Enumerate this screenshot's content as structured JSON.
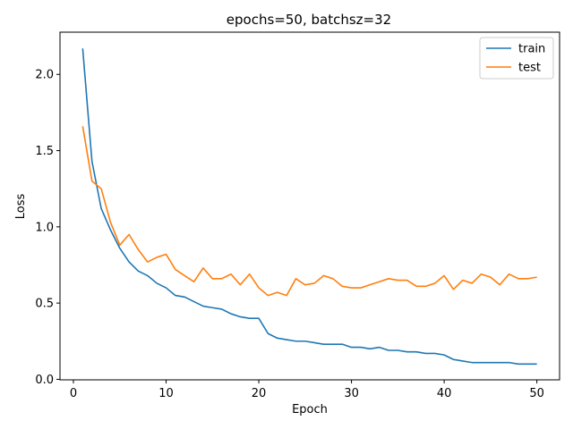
{
  "chart_data": {
    "type": "line",
    "title": "epochs=50, batchsz=32",
    "xlabel": "Epoch",
    "ylabel": "Loss",
    "xlim": [
      -1.45,
      52.45
    ],
    "ylim": [
      -0.0035,
      2.277
    ],
    "xticks": [
      0,
      10,
      20,
      30,
      40,
      50
    ],
    "xtick_labels": [
      "0",
      "10",
      "20",
      "30",
      "40",
      "50"
    ],
    "yticks": [
      0.0,
      0.5,
      1.0,
      1.5,
      2.0
    ],
    "ytick_labels": [
      "0.0",
      "0.5",
      "1.0",
      "1.5",
      "2.0"
    ],
    "grid": false,
    "legend_position": "top-right",
    "x": [
      1,
      2,
      3,
      4,
      5,
      6,
      7,
      8,
      9,
      10,
      11,
      12,
      13,
      14,
      15,
      16,
      17,
      18,
      19,
      20,
      21,
      22,
      23,
      24,
      25,
      26,
      27,
      28,
      29,
      30,
      31,
      32,
      33,
      34,
      35,
      36,
      37,
      38,
      39,
      40,
      41,
      42,
      43,
      44,
      45,
      46,
      47,
      48,
      49,
      50
    ],
    "series": [
      {
        "name": "train",
        "color": "#1f77b4",
        "values": [
          2.17,
          1.43,
          1.12,
          0.98,
          0.86,
          0.77,
          0.71,
          0.68,
          0.63,
          0.6,
          0.55,
          0.54,
          0.51,
          0.48,
          0.47,
          0.46,
          0.43,
          0.41,
          0.4,
          0.4,
          0.3,
          0.27,
          0.26,
          0.25,
          0.25,
          0.24,
          0.23,
          0.23,
          0.23,
          0.21,
          0.21,
          0.2,
          0.21,
          0.19,
          0.19,
          0.18,
          0.18,
          0.17,
          0.17,
          0.16,
          0.13,
          0.12,
          0.11,
          0.11,
          0.11,
          0.11,
          0.11,
          0.1,
          0.1,
          0.1
        ]
      },
      {
        "name": "test",
        "color": "#ff7f0e",
        "values": [
          1.66,
          1.3,
          1.25,
          1.03,
          0.88,
          0.95,
          0.85,
          0.77,
          0.8,
          0.82,
          0.72,
          0.68,
          0.64,
          0.73,
          0.66,
          0.66,
          0.69,
          0.62,
          0.69,
          0.6,
          0.55,
          0.57,
          0.55,
          0.66,
          0.62,
          0.63,
          0.68,
          0.66,
          0.61,
          0.6,
          0.6,
          0.62,
          0.64,
          0.66,
          0.65,
          0.65,
          0.61,
          0.61,
          0.63,
          0.68,
          0.59,
          0.65,
          0.63,
          0.69,
          0.67,
          0.62,
          0.69,
          0.66,
          0.66,
          0.67
        ]
      }
    ]
  }
}
